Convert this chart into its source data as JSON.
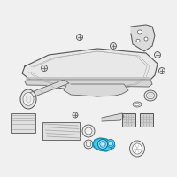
{
  "bg_color": "#f0f0f0",
  "highlight_color": "#45c8e8",
  "line_color": "#aaaaaa",
  "dark_color": "#666666",
  "edge_color": "#555555",
  "fig_size": [
    2.0,
    2.0
  ],
  "dpi": 100
}
